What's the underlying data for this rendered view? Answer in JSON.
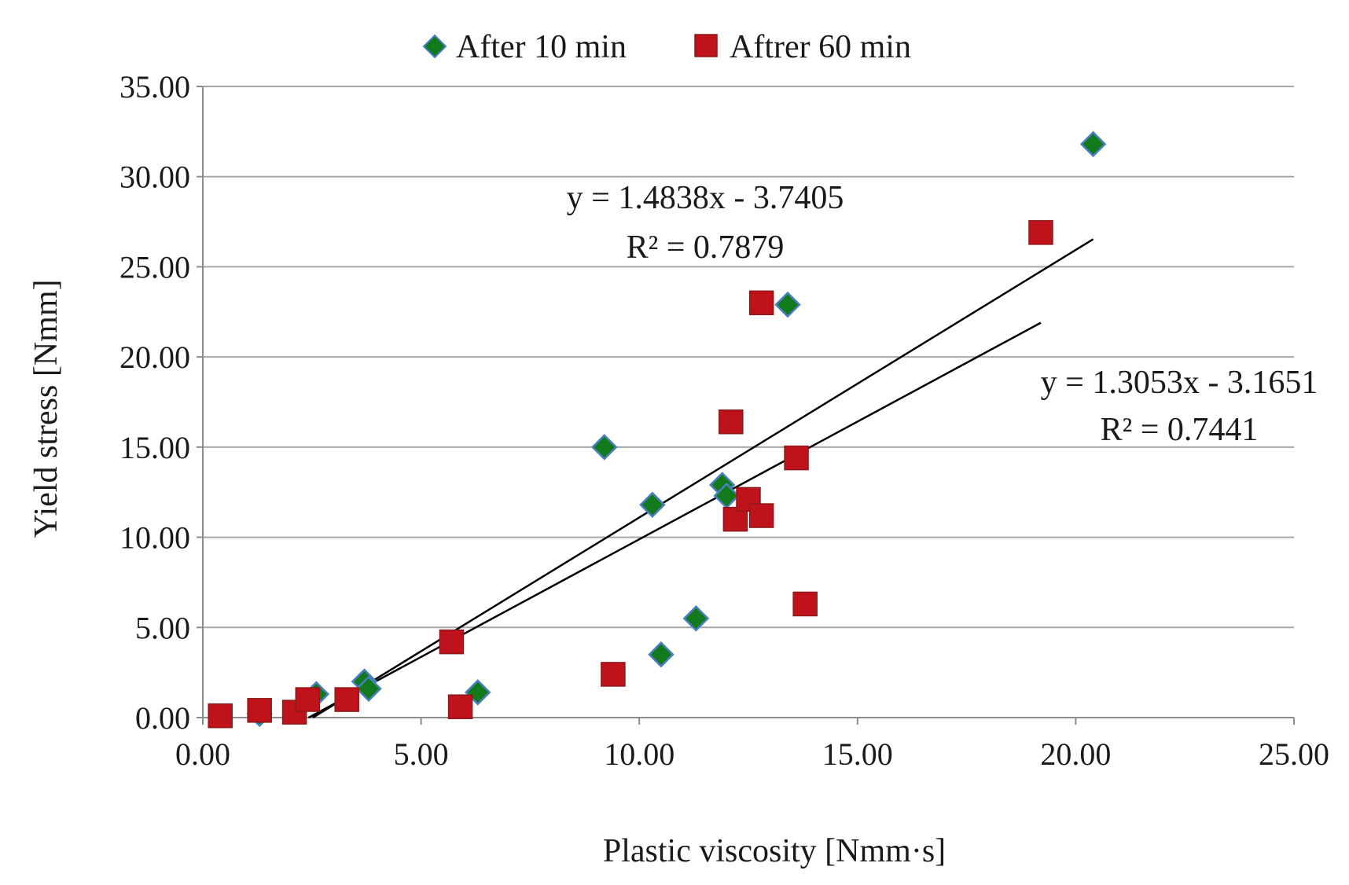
{
  "chart_data": {
    "type": "scatter",
    "title": "",
    "xlabel": "Plastic viscosity [Nmm·s]",
    "ylabel": "Yield stress [Nmm]",
    "xlim": [
      0,
      25
    ],
    "ylim": [
      0,
      35
    ],
    "xticks": [
      "0.00",
      "5.00",
      "10.00",
      "15.00",
      "20.00",
      "25.00"
    ],
    "yticks": [
      "0.00",
      "5.00",
      "10.00",
      "15.00",
      "20.00",
      "25.00",
      "30.00",
      "35.00"
    ],
    "grid": "horizontal",
    "legend_position": "top",
    "series": [
      {
        "name": "After 10 min",
        "marker": "diamond",
        "color": "#127a1d",
        "edge_color": "#4a7fc1",
        "points": [
          [
            1.3,
            0.2
          ],
          [
            2.6,
            1.3
          ],
          [
            3.7,
            2.0
          ],
          [
            3.8,
            1.6
          ],
          [
            6.3,
            1.4
          ],
          [
            9.2,
            15.0
          ],
          [
            10.3,
            11.8
          ],
          [
            10.5,
            3.5
          ],
          [
            11.3,
            5.5
          ],
          [
            11.9,
            12.9
          ],
          [
            12.0,
            12.3
          ],
          [
            13.4,
            22.9
          ],
          [
            20.4,
            31.8
          ]
        ],
        "trendline": {
          "slope": 1.4838,
          "intercept": -3.7405,
          "x_range": [
            2.52,
            20.4
          ],
          "equation": "y = 1.4838x - 3.7405",
          "r2": "R² = 0.7879"
        }
      },
      {
        "name": "Aftrer 60 min",
        "marker": "square",
        "color": "#c0121a",
        "edge_color": "#8a1a1a",
        "points": [
          [
            0.4,
            0.1
          ],
          [
            1.3,
            0.4
          ],
          [
            2.1,
            0.3
          ],
          [
            2.4,
            1.0
          ],
          [
            3.3,
            1.0
          ],
          [
            5.7,
            4.2
          ],
          [
            5.9,
            0.6
          ],
          [
            9.4,
            2.4
          ],
          [
            12.1,
            16.4
          ],
          [
            12.2,
            11.0
          ],
          [
            12.5,
            12.1
          ],
          [
            12.8,
            11.2
          ],
          [
            12.8,
            23.0
          ],
          [
            13.6,
            14.4
          ],
          [
            13.8,
            6.3
          ],
          [
            19.2,
            26.9
          ]
        ],
        "trendline": {
          "slope": 1.3053,
          "intercept": -3.1651,
          "x_range": [
            2.42,
            19.2
          ],
          "equation": "y = 1.3053x - 3.1651",
          "r2": "R² = 0.7441"
        }
      }
    ]
  }
}
